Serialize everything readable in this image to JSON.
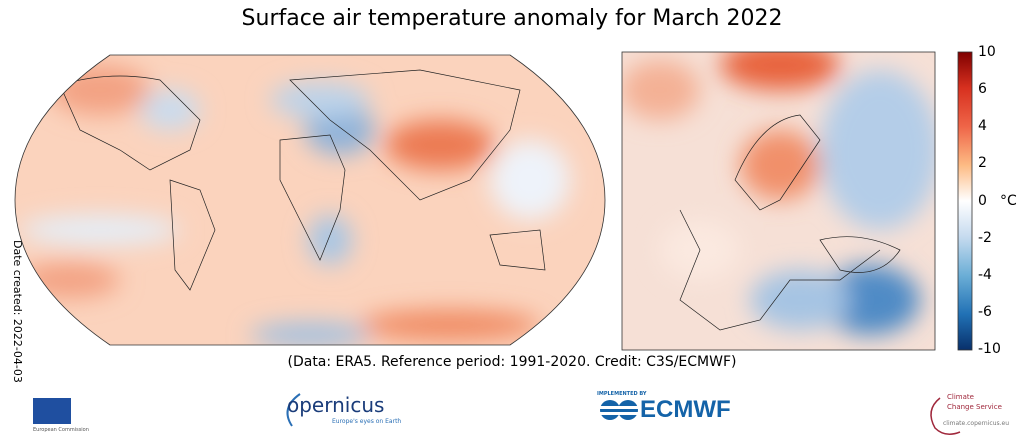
{
  "title": "Surface air temperature anomaly for March 2022",
  "date_created": "Date created: 2022-04-03",
  "credit": "(Data: ERA5.  Reference period: 1991-2020.  Credit: C3S/ECMWF)",
  "colorbar": {
    "unit": "°C",
    "ticks": [
      "10",
      "6",
      "4",
      "2",
      "0",
      "-2",
      "-4",
      "-6",
      "-10"
    ],
    "colors": [
      "#7f0000",
      "#d7301f",
      "#ef6548",
      "#fdbb84",
      "#ffffff",
      "#c6dbef",
      "#6baed6",
      "#2171b5",
      "#08306b"
    ]
  },
  "logos": {
    "eu_label": "European Commission",
    "copernicus": "opernicus",
    "copernicus_tagline": "Europe's eyes on Earth",
    "ecmwf_top": "IMPLEMENTED BY",
    "ecmwf": "ECMWF",
    "c3s_line1": "Climate",
    "c3s_line2": "Change Service",
    "c3s_url": "climate.copernicus.eu"
  }
}
